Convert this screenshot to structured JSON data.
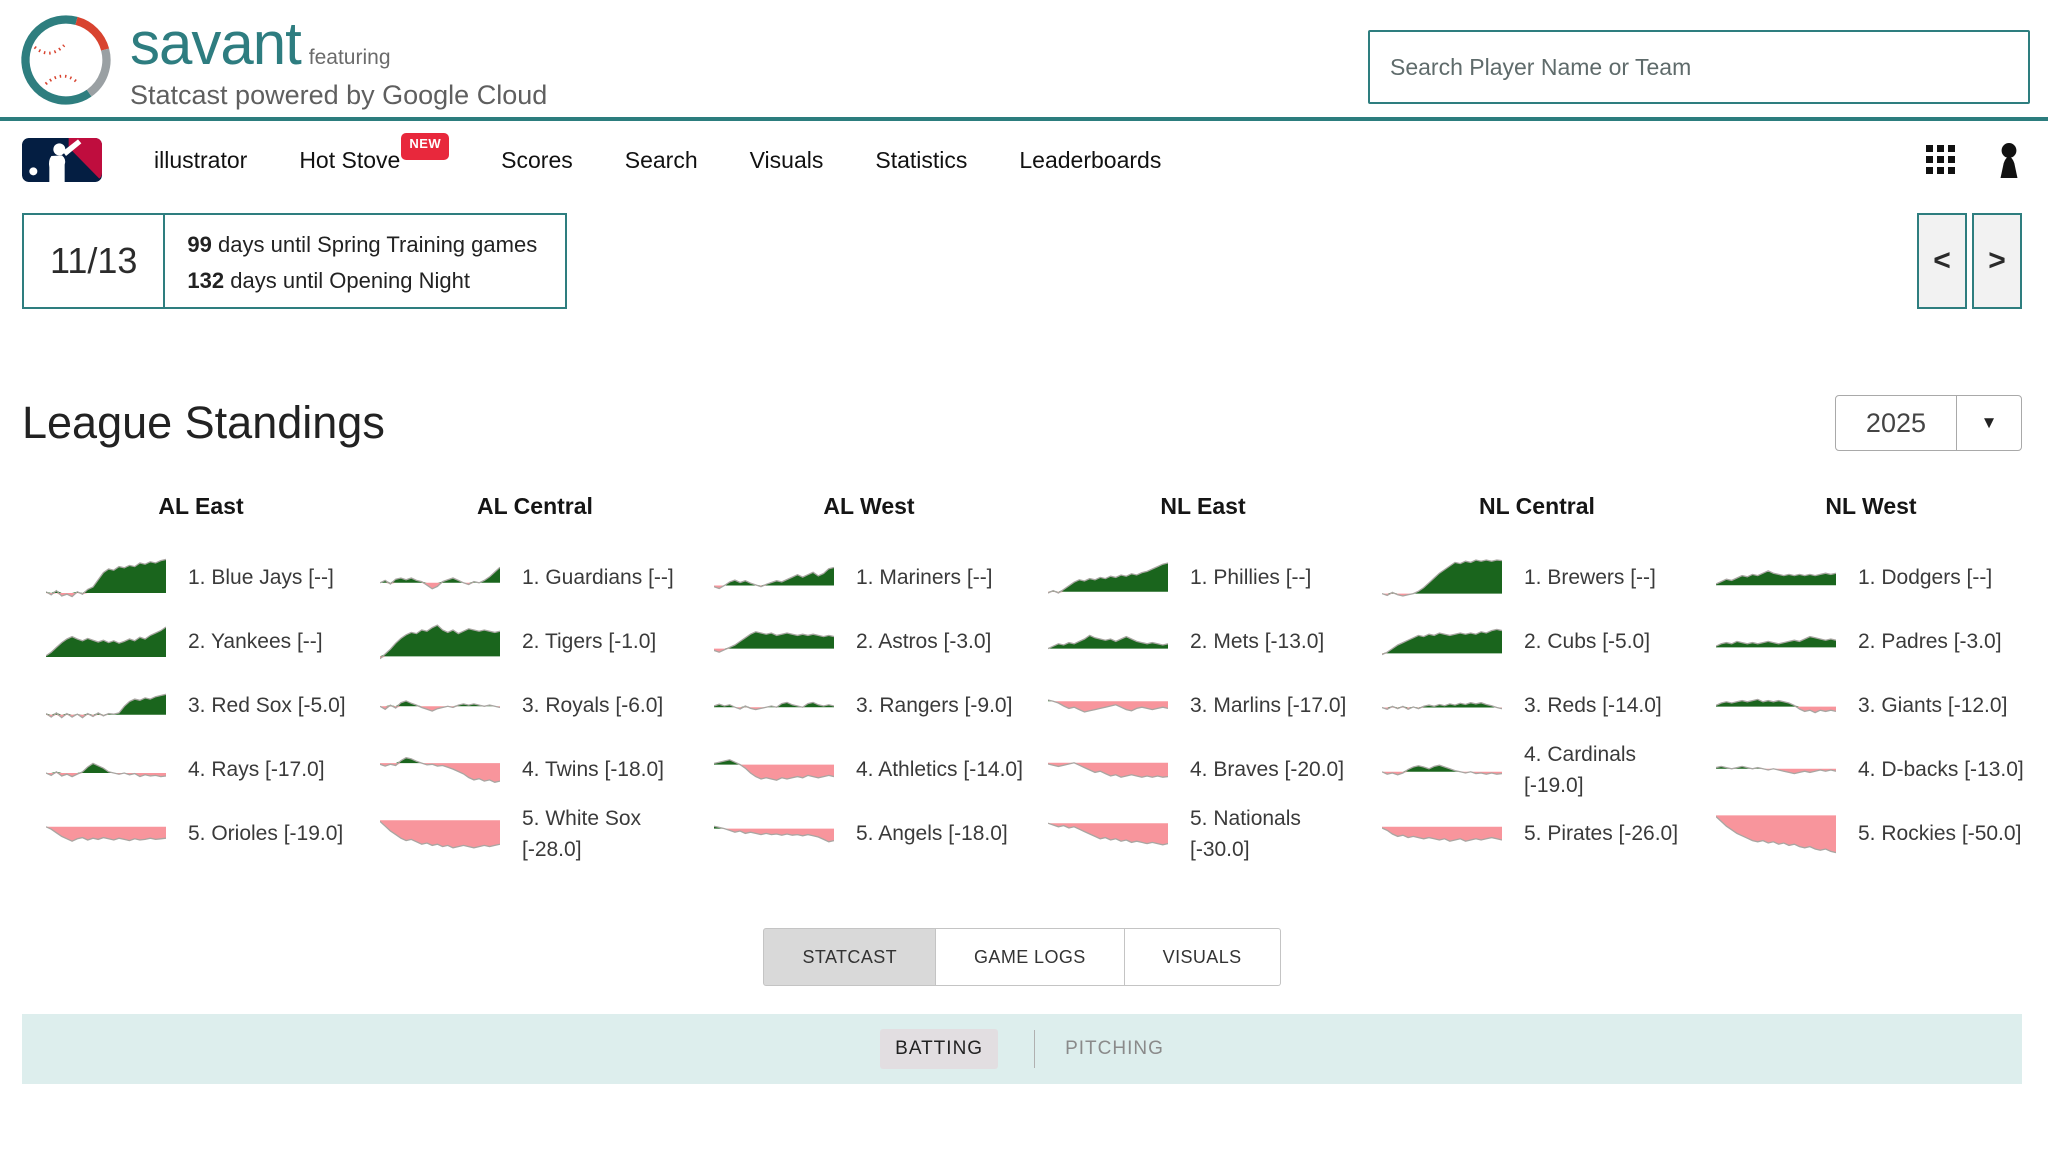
{
  "header": {
    "brand": {
      "title": "savant",
      "featuring": "featuring",
      "subtitle": "Statcast powered by Google Cloud"
    },
    "search_placeholder": "Search Player Name or Team"
  },
  "nav": {
    "items": [
      {
        "label": "illustrator"
      },
      {
        "label": "Hot Stove",
        "badge": "NEW"
      },
      {
        "label": "Scores"
      },
      {
        "label": "Search"
      },
      {
        "label": "Visuals"
      },
      {
        "label": "Statistics"
      },
      {
        "label": "Leaderboards"
      }
    ]
  },
  "date_strip": {
    "date": "11/13",
    "lines": [
      {
        "num": "99",
        "text": "days until Spring Training games"
      },
      {
        "num": "132",
        "text": "days until Opening Night"
      }
    ],
    "prev": "<",
    "next": ">"
  },
  "ui": {
    "dropdown_arrow": "▼"
  },
  "standings": {
    "title": "League Standings",
    "season": "2025",
    "divisions": [
      {
        "name": "AL East",
        "teams": [
          {
            "label": "1. Blue Jays [--]",
            "spark": [
              0.02,
              -0.03,
              0.04,
              -0.05,
              -0.02,
              -0.06,
              0.02,
              -0.02,
              0.06,
              0.1,
              0.22,
              0.34,
              0.4,
              0.38,
              0.44,
              0.42,
              0.46,
              0.44,
              0.5,
              0.48,
              0.52,
              0.5,
              0.54,
              0.56
            ]
          },
          {
            "label": "2. Yankees [--]",
            "spark": [
              0.02,
              0.08,
              0.16,
              0.24,
              0.3,
              0.34,
              0.3,
              0.27,
              0.31,
              0.28,
              0.25,
              0.28,
              0.24,
              0.27,
              0.23,
              0.26,
              0.3,
              0.27,
              0.33,
              0.3,
              0.36,
              0.4,
              0.44,
              0.5
            ]
          },
          {
            "label": "3. Red Sox [-5.0]",
            "spark": [
              0.02,
              -0.04,
              0.03,
              -0.05,
              0.02,
              -0.04,
              0.01,
              -0.05,
              0.02,
              -0.03,
              0.03,
              -0.02,
              0.02,
              0.01,
              0.03,
              0.14,
              0.22,
              0.26,
              0.24,
              0.28,
              0.26,
              0.3,
              0.32,
              0.34
            ]
          },
          {
            "label": "4. Rays [-17.0]",
            "spark": [
              0,
              -0.04,
              0.02,
              -0.05,
              -0.02,
              -0.06,
              -0.02,
              0.02,
              0.1,
              0.16,
              0.12,
              0.08,
              0.02,
              0,
              -0.02,
              0,
              -0.03,
              -0.01,
              -0.06,
              -0.03,
              -0.05,
              -0.04,
              -0.06,
              -0.05
            ]
          },
          {
            "label": "5. Orioles [-19.0]",
            "spark": [
              0,
              -0.04,
              -0.1,
              -0.16,
              -0.2,
              -0.24,
              -0.2,
              -0.18,
              -0.22,
              -0.19,
              -0.21,
              -0.18,
              -0.2,
              -0.22,
              -0.19,
              -0.21,
              -0.23,
              -0.2,
              -0.22,
              -0.21,
              -0.19,
              -0.21,
              -0.2,
              -0.19
            ]
          }
        ]
      },
      {
        "name": "AL Central",
        "teams": [
          {
            "label": "1. Guardians [--]",
            "spark": [
              0,
              0.04,
              -0.02,
              0.06,
              0.08,
              0.05,
              0.08,
              0.04,
              0.02,
              -0.04,
              -0.1,
              -0.06,
              0.02,
              0.05,
              0.08,
              0.04,
              0,
              -0.03,
              0.02,
              0,
              0.04,
              0.1,
              0.18,
              0.26
            ]
          },
          {
            "label": "2. Tigers [-1.0]",
            "spark": [
              -0.04,
              0.04,
              0.12,
              0.22,
              0.3,
              0.36,
              0.4,
              0.38,
              0.44,
              0.42,
              0.48,
              0.52,
              0.44,
              0.4,
              0.44,
              0.38,
              0.42,
              0.46,
              0.44,
              0.42,
              0.44,
              0.42,
              0.4,
              0.42
            ]
          },
          {
            "label": "3. Royals [-6.0]",
            "spark": [
              0,
              -0.05,
              0.02,
              -0.03,
              0.06,
              0.09,
              0.05,
              0.02,
              -0.02,
              -0.05,
              -0.08,
              -0.04,
              -0.02,
              0,
              -0.02,
              0.02,
              0.04,
              0.02,
              0.04,
              0.02,
              0,
              0.02,
              0,
              -0.02
            ]
          },
          {
            "label": "4. Twins [-18.0]",
            "spark": [
              -0.02,
              -0.05,
              -0.02,
              -0.04,
              0.04,
              0.09,
              0.07,
              0.03,
              0,
              -0.03,
              -0.02,
              -0.05,
              -0.04,
              -0.07,
              -0.1,
              -0.14,
              -0.18,
              -0.24,
              -0.28,
              -0.26,
              -0.3,
              -0.28,
              -0.32,
              -0.3
            ]
          },
          {
            "label": "5. White Sox [-28.0]",
            "spark": [
              -0.02,
              -0.1,
              -0.18,
              -0.24,
              -0.3,
              -0.34,
              -0.32,
              -0.36,
              -0.4,
              -0.38,
              -0.42,
              -0.4,
              -0.44,
              -0.42,
              -0.46,
              -0.44,
              -0.42,
              -0.44,
              -0.46,
              -0.44,
              -0.42,
              -0.44,
              -0.42,
              -0.4
            ]
          }
        ]
      },
      {
        "name": "AL West",
        "teams": [
          {
            "label": "1. Mariners [--]",
            "spark": [
              -0.02,
              -0.05,
              0,
              0.06,
              0.09,
              0.05,
              0.08,
              0.04,
              0.01,
              -0.02,
              0.02,
              0.05,
              0.08,
              0.06,
              0.1,
              0.14,
              0.18,
              0.14,
              0.18,
              0.22,
              0.16,
              0.2,
              0.28,
              0.3
            ]
          },
          {
            "label": "2. Astros [-3.0]",
            "spark": [
              -0.03,
              -0.06,
              -0.02,
              0.02,
              0.06,
              0.12,
              0.18,
              0.24,
              0.28,
              0.26,
              0.24,
              0.26,
              0.22,
              0.24,
              0.26,
              0.24,
              0.22,
              0.24,
              0.22,
              0.24,
              0.22,
              0.2,
              0.22,
              0.2
            ]
          },
          {
            "label": "3. Rangers [-9.0]",
            "spark": [
              0.02,
              0.05,
              0.02,
              0.04,
              0,
              -0.03,
              0.02,
              -0.02,
              -0.04,
              -0.02,
              0,
              0.02,
              0,
              0.06,
              0.08,
              0.04,
              0.02,
              0,
              0.06,
              0.08,
              0.04,
              0.02,
              0.04,
              0.02
            ]
          },
          {
            "label": "4. Athletics [-14.0]",
            "spark": [
              0.02,
              0.04,
              0.06,
              0.08,
              0.04,
              0,
              -0.06,
              -0.14,
              -0.2,
              -0.24,
              -0.22,
              -0.24,
              -0.26,
              -0.22,
              -0.24,
              -0.22,
              -0.2,
              -0.22,
              -0.18,
              -0.2,
              -0.22,
              -0.2,
              -0.18,
              -0.2
            ]
          },
          {
            "label": "5. Angels [-18.0]",
            "spark": [
              0.04,
              0.02,
              0,
              -0.03,
              -0.06,
              -0.04,
              -0.08,
              -0.06,
              -0.08,
              -0.1,
              -0.08,
              -0.1,
              -0.09,
              -0.11,
              -0.09,
              -0.11,
              -0.1,
              -0.12,
              -0.1,
              -0.12,
              -0.14,
              -0.18,
              -0.22,
              -0.2
            ]
          }
        ]
      },
      {
        "name": "NL East",
        "teams": [
          {
            "label": "1. Phillies [--]",
            "spark": [
              -0.02,
              0.02,
              -0.02,
              0.04,
              0.1,
              0.16,
              0.2,
              0.18,
              0.22,
              0.2,
              0.24,
              0.22,
              0.26,
              0.24,
              0.28,
              0.26,
              0.3,
              0.28,
              0.32,
              0.34,
              0.38,
              0.42,
              0.46,
              0.48
            ]
          },
          {
            "label": "2. Mets [-13.0]",
            "spark": [
              0,
              0.04,
              0.08,
              0.06,
              0.1,
              0.08,
              0.12,
              0.16,
              0.22,
              0.18,
              0.16,
              0.14,
              0.16,
              0.12,
              0.16,
              0.2,
              0.16,
              0.12,
              0.1,
              0.08,
              0.1,
              0.08,
              0.06,
              0.08
            ]
          },
          {
            "label": "3. Marlins [-17.0]",
            "spark": [
              0.02,
              0,
              -0.03,
              -0.08,
              -0.12,
              -0.1,
              -0.14,
              -0.18,
              -0.16,
              -0.14,
              -0.12,
              -0.1,
              -0.08,
              -0.06,
              -0.1,
              -0.14,
              -0.16,
              -0.12,
              -0.1,
              -0.12,
              -0.14,
              -0.12,
              -0.1,
              -0.12
            ]
          },
          {
            "label": "4. Braves [-20.0]",
            "spark": [
              -0.02,
              -0.04,
              -0.06,
              -0.04,
              -0.02,
              0,
              -0.04,
              -0.08,
              -0.12,
              -0.16,
              -0.14,
              -0.18,
              -0.22,
              -0.2,
              -0.24,
              -0.22,
              -0.2,
              -0.22,
              -0.24,
              -0.22,
              -0.24,
              -0.22,
              -0.24,
              -0.23
            ]
          },
          {
            "label": "5. Nationals [-30.0]",
            "spark": [
              0,
              -0.03,
              -0.06,
              -0.04,
              -0.08,
              -0.06,
              -0.1,
              -0.14,
              -0.18,
              -0.22,
              -0.26,
              -0.24,
              -0.28,
              -0.26,
              -0.3,
              -0.28,
              -0.32,
              -0.3,
              -0.32,
              -0.34,
              -0.32,
              -0.34,
              -0.36,
              -0.34
            ]
          }
        ]
      },
      {
        "name": "NL Central",
        "teams": [
          {
            "label": "1. Brewers [--]",
            "spark": [
              0,
              -0.03,
              0.02,
              -0.02,
              -0.04,
              -0.02,
              0,
              0.04,
              0.1,
              0.18,
              0.26,
              0.34,
              0.4,
              0.46,
              0.52,
              0.5,
              0.54,
              0.52,
              0.56,
              0.54,
              0.56,
              0.54,
              0.56,
              0.55
            ]
          },
          {
            "label": "2. Cubs [-5.0]",
            "spark": [
              -0.02,
              0.02,
              0.08,
              0.14,
              0.18,
              0.22,
              0.26,
              0.3,
              0.28,
              0.32,
              0.3,
              0.34,
              0.32,
              0.3,
              0.32,
              0.34,
              0.32,
              0.34,
              0.32,
              0.36,
              0.34,
              0.38,
              0.4,
              0.38
            ]
          },
          {
            "label": "3. Reds [-14.0]",
            "spark": [
              0,
              -0.03,
              0.02,
              -0.02,
              0.02,
              -0.03,
              0.01,
              -0.02,
              0.02,
              0.04,
              0.02,
              0.05,
              0.03,
              0.06,
              0.04,
              0.07,
              0.05,
              0.08,
              0.06,
              0.08,
              0.05,
              0.03,
              0,
              -0.02
            ]
          },
          {
            "label": "4. Cardinals [-19.0]",
            "spark": [
              0,
              -0.04,
              -0.02,
              -0.05,
              -0.02,
              0.04,
              0.08,
              0.1,
              0.08,
              0.05,
              0.09,
              0.11,
              0.08,
              0.05,
              0.02,
              0,
              -0.02,
              0,
              -0.03,
              -0.02,
              -0.04,
              -0.02,
              -0.04,
              -0.03
            ]
          },
          {
            "label": "5. Pirates [-26.0]",
            "spark": [
              -0.02,
              -0.06,
              -0.12,
              -0.16,
              -0.14,
              -0.18,
              -0.16,
              -0.18,
              -0.2,
              -0.18,
              -0.2,
              -0.22,
              -0.2,
              -0.24,
              -0.22,
              -0.2,
              -0.24,
              -0.22,
              -0.2,
              -0.22,
              -0.2,
              -0.18,
              -0.2,
              -0.22
            ]
          }
        ]
      },
      {
        "name": "NL West",
        "teams": [
          {
            "label": "1. Dodgers [--]",
            "spark": [
              0.02,
              0.06,
              0.1,
              0.08,
              0.12,
              0.16,
              0.14,
              0.18,
              0.16,
              0.2,
              0.24,
              0.2,
              0.18,
              0.16,
              0.18,
              0.16,
              0.18,
              0.16,
              0.18,
              0.16,
              0.18,
              0.2,
              0.18,
              0.2
            ]
          },
          {
            "label": "2. Padres [-3.0]",
            "spark": [
              0.02,
              0.06,
              0.08,
              0.06,
              0.1,
              0.08,
              0.06,
              0.08,
              0.06,
              0.08,
              0.1,
              0.08,
              0.06,
              0.08,
              0.1,
              0.12,
              0.1,
              0.14,
              0.18,
              0.16,
              0.14,
              0.12,
              0.14,
              0.12
            ]
          },
          {
            "label": "3. Giants [-12.0]",
            "spark": [
              0.02,
              0.06,
              0.08,
              0.06,
              0.08,
              0.1,
              0.08,
              0.1,
              0.12,
              0.08,
              0.1,
              0.08,
              0.1,
              0.08,
              0.06,
              0.02,
              -0.04,
              -0.08,
              -0.06,
              -0.1,
              -0.06,
              -0.08,
              -0.06,
              -0.08
            ]
          },
          {
            "label": "4. D-backs [-13.0]",
            "spark": [
              0.02,
              0.04,
              0.02,
              0,
              0.02,
              0.04,
              0.02,
              0,
              0.02,
              0,
              -0.02,
              0,
              -0.02,
              -0.04,
              -0.06,
              -0.08,
              -0.06,
              -0.04,
              -0.06,
              -0.04,
              -0.02,
              -0.04,
              -0.02,
              -0.04
            ]
          },
          {
            "label": "5. Rockies [-50.0]",
            "spark": [
              -0.02,
              -0.1,
              -0.18,
              -0.24,
              -0.3,
              -0.34,
              -0.38,
              -0.42,
              -0.44,
              -0.42,
              -0.46,
              -0.44,
              -0.48,
              -0.46,
              -0.5,
              -0.48,
              -0.52,
              -0.54,
              -0.52,
              -0.56,
              -0.58,
              -0.56,
              -0.6,
              -0.62
            ]
          }
        ]
      }
    ]
  },
  "tabs": [
    {
      "label": "STATCAST",
      "active": true
    },
    {
      "label": "GAME LOGS",
      "active": false
    },
    {
      "label": "VISUALS",
      "active": false
    }
  ],
  "sub_tabs": [
    {
      "label": "BATTING",
      "active": true
    },
    {
      "label": "PITCHING",
      "active": false
    }
  ],
  "colors": {
    "teal": "#2e7e7f",
    "green": "#1a651d",
    "pink": "#f8959c",
    "line": "#a9a6a2",
    "badge_red": "#e8283c"
  }
}
